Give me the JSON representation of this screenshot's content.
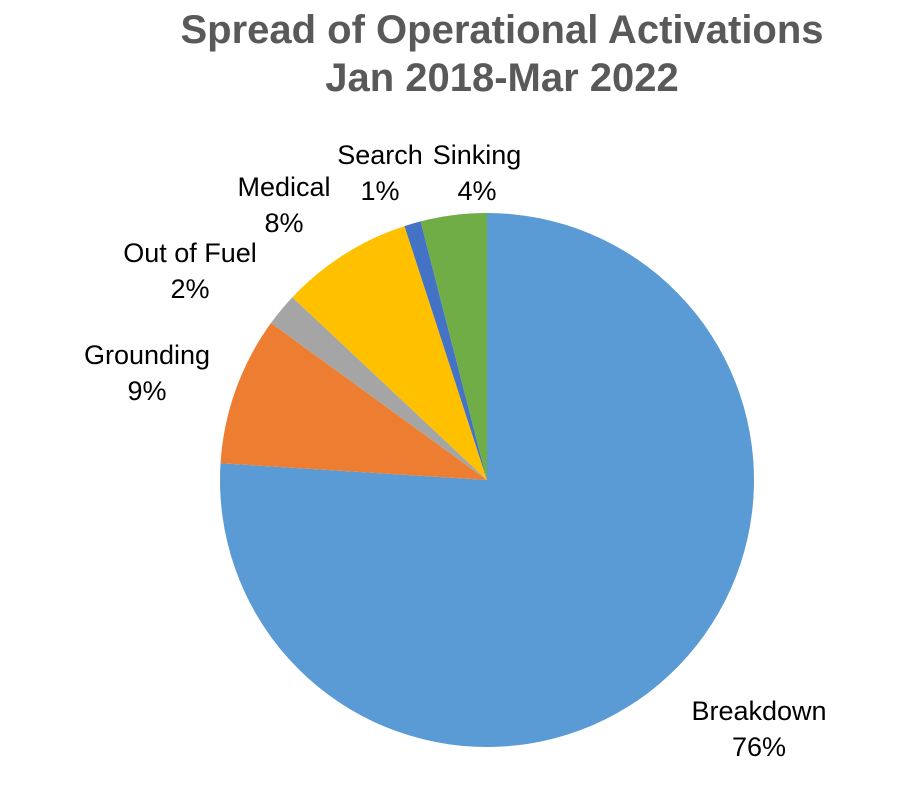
{
  "chart": {
    "title_line1": "Spread of Operational Activations",
    "title_line2": "Jan 2018-Mar 2022",
    "title_color": "#595959",
    "label_color": "#000000",
    "background_color": "#FFFFFF"
  },
  "chart_data": {
    "type": "pie",
    "title": "Spread of Operational Activations Jan 2018-Mar 2022",
    "unit": "percent",
    "start_angle_deg": 0,
    "direction": "clockwise",
    "legend": "none",
    "labels_position": "outside-end",
    "slices": [
      {
        "id": "breakdown",
        "label": "Breakdown",
        "value": 76,
        "pct_label": "76%",
        "color": "#5B9BD5"
      },
      {
        "id": "grounding",
        "label": "Grounding",
        "value": 9,
        "pct_label": "9%",
        "color": "#ED7D31"
      },
      {
        "id": "out-of-fuel",
        "label": "Out of Fuel",
        "value": 2,
        "pct_label": "2%",
        "color": "#A5A5A5"
      },
      {
        "id": "medical",
        "label": "Medical",
        "value": 8,
        "pct_label": "8%",
        "color": "#FFC000"
      },
      {
        "id": "search",
        "label": "Search",
        "value": 1,
        "pct_label": "1%",
        "color": "#4472C4"
      },
      {
        "id": "sinking",
        "label": "Sinking",
        "value": 4,
        "pct_label": "4%",
        "color": "#70AD47"
      }
    ]
  }
}
